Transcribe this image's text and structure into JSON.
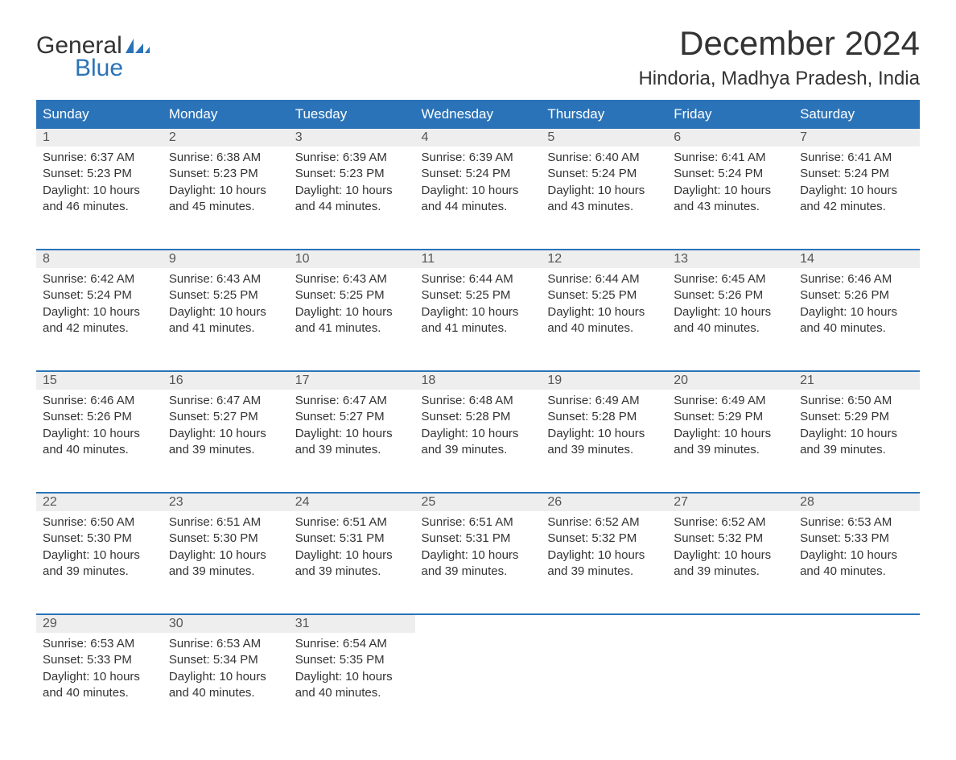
{
  "logo": {
    "text_general": "General",
    "text_blue": "Blue",
    "flag_color": "#2b73b8"
  },
  "header": {
    "month_title": "December 2024",
    "location": "Hindoria, Madhya Pradesh, India"
  },
  "colors": {
    "header_bg": "#2b73b8",
    "header_text": "#ffffff",
    "daynum_bg": "#eeeeee",
    "row_border": "#2b73b8",
    "body_text": "#333333",
    "background": "#ffffff"
  },
  "typography": {
    "month_title_fontsize": 42,
    "location_fontsize": 24,
    "dayheader_fontsize": 17,
    "cell_fontsize": 15
  },
  "calendar": {
    "type": "table",
    "columns": [
      "Sunday",
      "Monday",
      "Tuesday",
      "Wednesday",
      "Thursday",
      "Friday",
      "Saturday"
    ],
    "weeks": [
      [
        {
          "day": "1",
          "sunrise": "Sunrise: 6:37 AM",
          "sunset": "Sunset: 5:23 PM",
          "day1": "Daylight: 10 hours",
          "day2": "and 46 minutes."
        },
        {
          "day": "2",
          "sunrise": "Sunrise: 6:38 AM",
          "sunset": "Sunset: 5:23 PM",
          "day1": "Daylight: 10 hours",
          "day2": "and 45 minutes."
        },
        {
          "day": "3",
          "sunrise": "Sunrise: 6:39 AM",
          "sunset": "Sunset: 5:23 PM",
          "day1": "Daylight: 10 hours",
          "day2": "and 44 minutes."
        },
        {
          "day": "4",
          "sunrise": "Sunrise: 6:39 AM",
          "sunset": "Sunset: 5:24 PM",
          "day1": "Daylight: 10 hours",
          "day2": "and 44 minutes."
        },
        {
          "day": "5",
          "sunrise": "Sunrise: 6:40 AM",
          "sunset": "Sunset: 5:24 PM",
          "day1": "Daylight: 10 hours",
          "day2": "and 43 minutes."
        },
        {
          "day": "6",
          "sunrise": "Sunrise: 6:41 AM",
          "sunset": "Sunset: 5:24 PM",
          "day1": "Daylight: 10 hours",
          "day2": "and 43 minutes."
        },
        {
          "day": "7",
          "sunrise": "Sunrise: 6:41 AM",
          "sunset": "Sunset: 5:24 PM",
          "day1": "Daylight: 10 hours",
          "day2": "and 42 minutes."
        }
      ],
      [
        {
          "day": "8",
          "sunrise": "Sunrise: 6:42 AM",
          "sunset": "Sunset: 5:24 PM",
          "day1": "Daylight: 10 hours",
          "day2": "and 42 minutes."
        },
        {
          "day": "9",
          "sunrise": "Sunrise: 6:43 AM",
          "sunset": "Sunset: 5:25 PM",
          "day1": "Daylight: 10 hours",
          "day2": "and 41 minutes."
        },
        {
          "day": "10",
          "sunrise": "Sunrise: 6:43 AM",
          "sunset": "Sunset: 5:25 PM",
          "day1": "Daylight: 10 hours",
          "day2": "and 41 minutes."
        },
        {
          "day": "11",
          "sunrise": "Sunrise: 6:44 AM",
          "sunset": "Sunset: 5:25 PM",
          "day1": "Daylight: 10 hours",
          "day2": "and 41 minutes."
        },
        {
          "day": "12",
          "sunrise": "Sunrise: 6:44 AM",
          "sunset": "Sunset: 5:25 PM",
          "day1": "Daylight: 10 hours",
          "day2": "and 40 minutes."
        },
        {
          "day": "13",
          "sunrise": "Sunrise: 6:45 AM",
          "sunset": "Sunset: 5:26 PM",
          "day1": "Daylight: 10 hours",
          "day2": "and 40 minutes."
        },
        {
          "day": "14",
          "sunrise": "Sunrise: 6:46 AM",
          "sunset": "Sunset: 5:26 PM",
          "day1": "Daylight: 10 hours",
          "day2": "and 40 minutes."
        }
      ],
      [
        {
          "day": "15",
          "sunrise": "Sunrise: 6:46 AM",
          "sunset": "Sunset: 5:26 PM",
          "day1": "Daylight: 10 hours",
          "day2": "and 40 minutes."
        },
        {
          "day": "16",
          "sunrise": "Sunrise: 6:47 AM",
          "sunset": "Sunset: 5:27 PM",
          "day1": "Daylight: 10 hours",
          "day2": "and 39 minutes."
        },
        {
          "day": "17",
          "sunrise": "Sunrise: 6:47 AM",
          "sunset": "Sunset: 5:27 PM",
          "day1": "Daylight: 10 hours",
          "day2": "and 39 minutes."
        },
        {
          "day": "18",
          "sunrise": "Sunrise: 6:48 AM",
          "sunset": "Sunset: 5:28 PM",
          "day1": "Daylight: 10 hours",
          "day2": "and 39 minutes."
        },
        {
          "day": "19",
          "sunrise": "Sunrise: 6:49 AM",
          "sunset": "Sunset: 5:28 PM",
          "day1": "Daylight: 10 hours",
          "day2": "and 39 minutes."
        },
        {
          "day": "20",
          "sunrise": "Sunrise: 6:49 AM",
          "sunset": "Sunset: 5:29 PM",
          "day1": "Daylight: 10 hours",
          "day2": "and 39 minutes."
        },
        {
          "day": "21",
          "sunrise": "Sunrise: 6:50 AM",
          "sunset": "Sunset: 5:29 PM",
          "day1": "Daylight: 10 hours",
          "day2": "and 39 minutes."
        }
      ],
      [
        {
          "day": "22",
          "sunrise": "Sunrise: 6:50 AM",
          "sunset": "Sunset: 5:30 PM",
          "day1": "Daylight: 10 hours",
          "day2": "and 39 minutes."
        },
        {
          "day": "23",
          "sunrise": "Sunrise: 6:51 AM",
          "sunset": "Sunset: 5:30 PM",
          "day1": "Daylight: 10 hours",
          "day2": "and 39 minutes."
        },
        {
          "day": "24",
          "sunrise": "Sunrise: 6:51 AM",
          "sunset": "Sunset: 5:31 PM",
          "day1": "Daylight: 10 hours",
          "day2": "and 39 minutes."
        },
        {
          "day": "25",
          "sunrise": "Sunrise: 6:51 AM",
          "sunset": "Sunset: 5:31 PM",
          "day1": "Daylight: 10 hours",
          "day2": "and 39 minutes."
        },
        {
          "day": "26",
          "sunrise": "Sunrise: 6:52 AM",
          "sunset": "Sunset: 5:32 PM",
          "day1": "Daylight: 10 hours",
          "day2": "and 39 minutes."
        },
        {
          "day": "27",
          "sunrise": "Sunrise: 6:52 AM",
          "sunset": "Sunset: 5:32 PM",
          "day1": "Daylight: 10 hours",
          "day2": "and 39 minutes."
        },
        {
          "day": "28",
          "sunrise": "Sunrise: 6:53 AM",
          "sunset": "Sunset: 5:33 PM",
          "day1": "Daylight: 10 hours",
          "day2": "and 40 minutes."
        }
      ],
      [
        {
          "day": "29",
          "sunrise": "Sunrise: 6:53 AM",
          "sunset": "Sunset: 5:33 PM",
          "day1": "Daylight: 10 hours",
          "day2": "and 40 minutes."
        },
        {
          "day": "30",
          "sunrise": "Sunrise: 6:53 AM",
          "sunset": "Sunset: 5:34 PM",
          "day1": "Daylight: 10 hours",
          "day2": "and 40 minutes."
        },
        {
          "day": "31",
          "sunrise": "Sunrise: 6:54 AM",
          "sunset": "Sunset: 5:35 PM",
          "day1": "Daylight: 10 hours",
          "day2": "and 40 minutes."
        },
        null,
        null,
        null,
        null
      ]
    ]
  }
}
